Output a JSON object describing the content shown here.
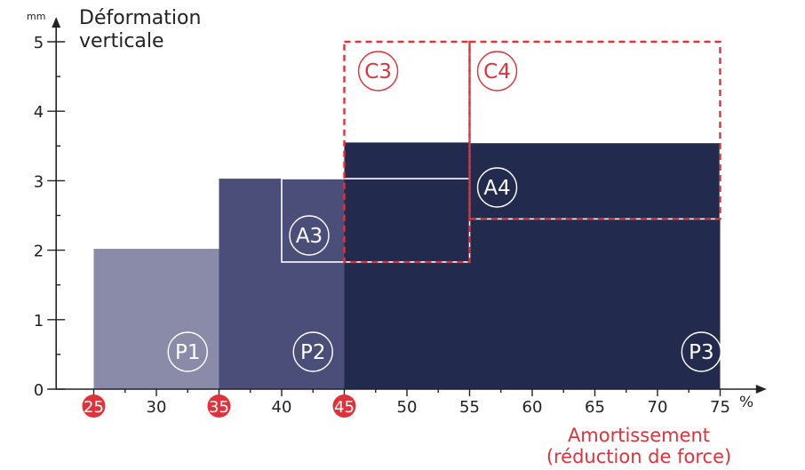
{
  "chart_data": {
    "type": "bar",
    "y_title": [
      "Déformation",
      "verticale"
    ],
    "y_unit": "mm",
    "x_title": [
      "Amortissement",
      "(réduction de force)"
    ],
    "x_unit": "%",
    "xlim": [
      20,
      78
    ],
    "ylim": [
      0,
      5.1
    ],
    "x_ticks": [
      25,
      30,
      35,
      40,
      45,
      50,
      55,
      60,
      65,
      70,
      75
    ],
    "x_ticks_highlighted": [
      25,
      35,
      45
    ],
    "y_ticks": [
      0,
      1,
      2,
      3,
      4,
      5
    ],
    "regions": [
      {
        "label": "P1",
        "x0": 25,
        "x1": 35,
        "y0": 0,
        "y1": 2.02,
        "fill": "#8a8ba8"
      },
      {
        "label": "P2",
        "x0": 35,
        "x1": 45,
        "y0": 0,
        "y1": 3.03,
        "fill": "#4b4e78"
      },
      {
        "label": "P3",
        "x0": 45,
        "x1": 75,
        "y0": 0,
        "y1": 3.55,
        "fill": "#222a4e"
      }
    ],
    "outlined_regions": [
      {
        "label": "A3",
        "x0": 40,
        "x1": 55,
        "y0": 1.83,
        "y1": 3.03,
        "stroke": "#ffffff"
      },
      {
        "label": "A4",
        "x0": 55,
        "x1": 75,
        "y0": 2.45,
        "y1": 3.55,
        "stroke": "#ffffff"
      }
    ],
    "dashed_regions": [
      {
        "label": "C3",
        "x0": 45,
        "x1": 55,
        "y0": 1.83,
        "y1": 5.0,
        "stroke": "#e0323a"
      },
      {
        "label": "C4",
        "x0": 55,
        "x1": 75,
        "y0": 2.45,
        "y1": 5.0,
        "stroke": "#e0323a"
      }
    ],
    "colors": {
      "accent_red": "#e0323a",
      "axis": "#222222"
    }
  }
}
